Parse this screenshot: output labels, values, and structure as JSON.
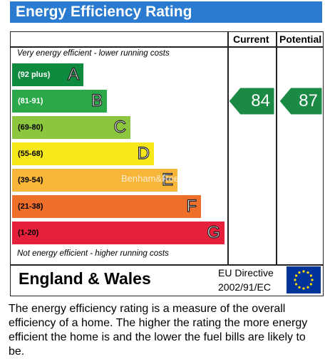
{
  "header": {
    "title": "Energy Efficiency Rating"
  },
  "columns": {
    "current": "Current",
    "potential": "Potential"
  },
  "notes": {
    "top": "Very energy efficient - lower running costs",
    "bottom": "Not energy efficient - higher running costs"
  },
  "chart_data": {
    "type": "bar",
    "title": "Energy Efficiency Rating",
    "categories": [
      "A",
      "B",
      "C",
      "D",
      "E",
      "F",
      "G"
    ],
    "bands": [
      {
        "letter": "A",
        "range": "(92 plus)",
        "color": "#0e8a3e"
      },
      {
        "letter": "B",
        "range": "(81-91)",
        "color": "#2aa84a"
      },
      {
        "letter": "C",
        "range": "(69-80)",
        "color": "#8cc63f"
      },
      {
        "letter": "D",
        "range": "(55-68)",
        "color": "#f7e81c"
      },
      {
        "letter": "E",
        "range": "(39-54)",
        "color": "#f7b53a"
      },
      {
        "letter": "F",
        "range": "(21-38)",
        "color": "#ee6f2a"
      },
      {
        "letter": "G",
        "range": "(1-20)",
        "color": "#e6203a"
      }
    ],
    "current": {
      "value": 84,
      "band": "B",
      "color": "#1a8a44"
    },
    "potential": {
      "value": 87,
      "band": "B",
      "color": "#1a8a44"
    }
  },
  "footer": {
    "country": "England & Wales",
    "directive_line1": "EU Directive",
    "directive_line2": "2002/91/EC"
  },
  "caption": "The energy efficiency rating is a measure of the overall efficiency of a home. The higher the rating the more energy efficient the home is and the lower the fuel bills are likely to be.",
  "watermark": "Benham&Reeves"
}
